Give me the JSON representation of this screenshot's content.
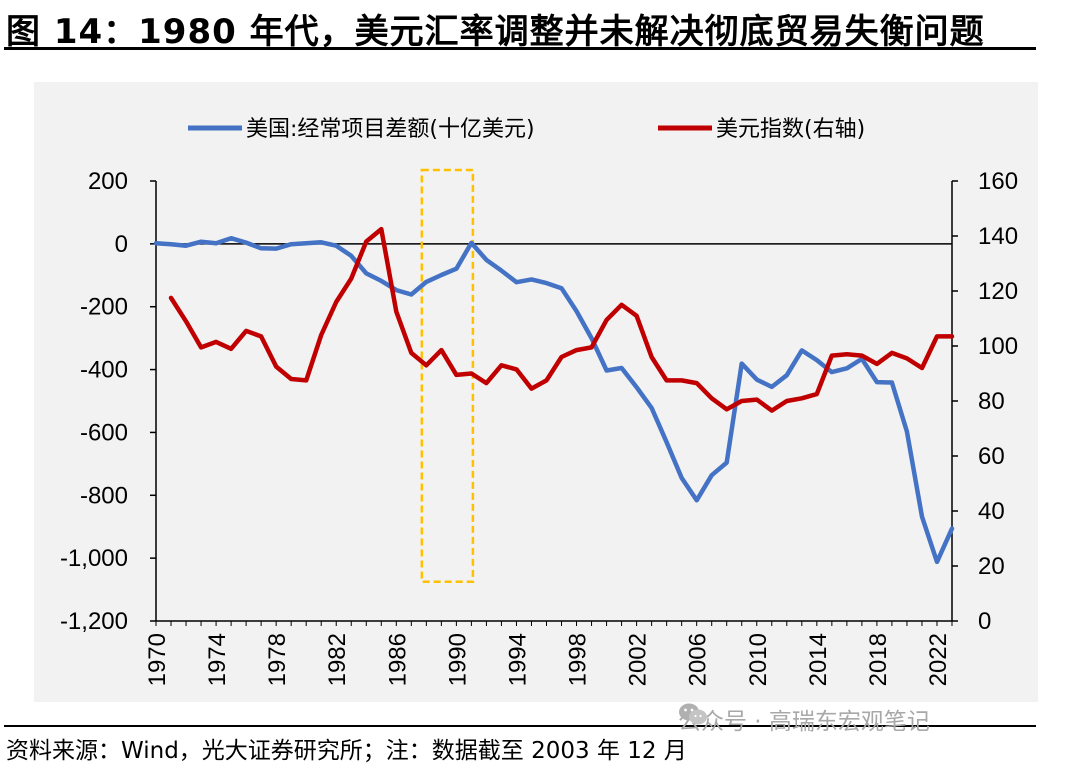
{
  "title": "图 14：1980 年代，美元汇率调整并未解决彻底贸易失衡问题",
  "source": "资料来源：Wind，光大证券研究所；注：数据截至 2003 年 12 月",
  "watermark": "公众号 · 高瑞东宏观笔记",
  "colors": {
    "blue": "#4472c4",
    "red": "#c00000",
    "highlight": "#ffc000",
    "plot_bg": "#f2f2f2"
  },
  "chart_data": {
    "type": "line",
    "title": "",
    "xlabel": "",
    "ylabel": "",
    "y_left": {
      "range": [
        -1200,
        200
      ],
      "ticks": [
        200,
        0,
        -200,
        -400,
        -600,
        -800,
        -1000,
        -1200
      ],
      "tick_labels": [
        "200",
        "0",
        "-200",
        "-400",
        "-600",
        "-800",
        "-1,000",
        "-1,200"
      ]
    },
    "y_right": {
      "range": [
        0,
        160
      ],
      "ticks": [
        160,
        140,
        120,
        100,
        80,
        60,
        40,
        20,
        0
      ],
      "tick_labels": [
        "160",
        "140",
        "120",
        "100",
        "80",
        "60",
        "40",
        "20",
        "0"
      ]
    },
    "x_range": [
      1970,
      2023
    ],
    "x_ticks": [
      "1970",
      "1974",
      "1978",
      "1982",
      "1986",
      "1990",
      "1994",
      "1998",
      "2002",
      "2006",
      "2010",
      "2014",
      "2018",
      "2022"
    ],
    "legend_position": "top",
    "grid": false,
    "highlight": {
      "x_range": [
        1987.7,
        1991.1
      ],
      "y_range_left": [
        -1075,
        235
      ]
    },
    "series": [
      {
        "name": "美国:经常项目差额(十亿美元)",
        "axis": "left",
        "color": "#4472c4",
        "x": [
          1970,
          1971,
          1972,
          1973,
          1974,
          1975,
          1976,
          1977,
          1978,
          1979,
          1980,
          1981,
          1982,
          1983,
          1984,
          1985,
          1986,
          1987,
          1988,
          1989,
          1990,
          1991,
          1992,
          1993,
          1994,
          1995,
          1996,
          1997,
          1998,
          1999,
          2000,
          2001,
          2002,
          2003,
          2004,
          2005,
          2006,
          2007,
          2008,
          2009,
          2010,
          2011,
          2012,
          2013,
          2014,
          2015,
          2016,
          2017,
          2018,
          2019,
          2020,
          2021,
          2022,
          2023
        ],
        "values": [
          2,
          -1,
          -6,
          7,
          2,
          18,
          4,
          -14,
          -15,
          -1,
          2,
          5,
          -6,
          -38,
          -94,
          -118,
          -147,
          -161,
          -121,
          -99,
          -79,
          3,
          -51,
          -85,
          -122,
          -113,
          -125,
          -141,
          -214,
          -300,
          -403,
          -395,
          -456,
          -522,
          -631,
          -745,
          -816,
          -736,
          -696,
          -381,
          -432,
          -455,
          -418,
          -339,
          -370,
          -408,
          -396,
          -366,
          -440,
          -441,
          -597,
          -868,
          -1012,
          -906
        ]
      },
      {
        "name": "美元指数(右轴)",
        "axis": "right",
        "color": "#c00000",
        "x": [
          1971,
          1972,
          1973,
          1974,
          1975,
          1976,
          1977,
          1978,
          1979,
          1980,
          1981,
          1982,
          1983,
          1984,
          1985,
          1986,
          1987,
          1988,
          1989,
          1990,
          1991,
          1992,
          1993,
          1994,
          1995,
          1996,
          1997,
          1998,
          1999,
          2000,
          2001,
          2002,
          2003,
          2004,
          2005,
          2006,
          2007,
          2008,
          2009,
          2010,
          2011,
          2012,
          2013,
          2014,
          2015,
          2016,
          2017,
          2018,
          2019,
          2020,
          2021,
          2022,
          2023
        ],
        "values": [
          117.5,
          109,
          99.5,
          101.5,
          99,
          105.5,
          103.5,
          92.5,
          88,
          87.5,
          104,
          116,
          124.5,
          138,
          142.5,
          112.5,
          97.5,
          93,
          98.5,
          89.5,
          90,
          86.5,
          93,
          91.5,
          84.5,
          87.5,
          96,
          98.5,
          99.5,
          109.5,
          115,
          111,
          96,
          87.5,
          87.5,
          86.5,
          81,
          77,
          80,
          80.5,
          76.5,
          80,
          81,
          82.5,
          96.5,
          97,
          96.5,
          93.5,
          97.5,
          95.5,
          92,
          103.5,
          103.5
        ]
      }
    ]
  }
}
